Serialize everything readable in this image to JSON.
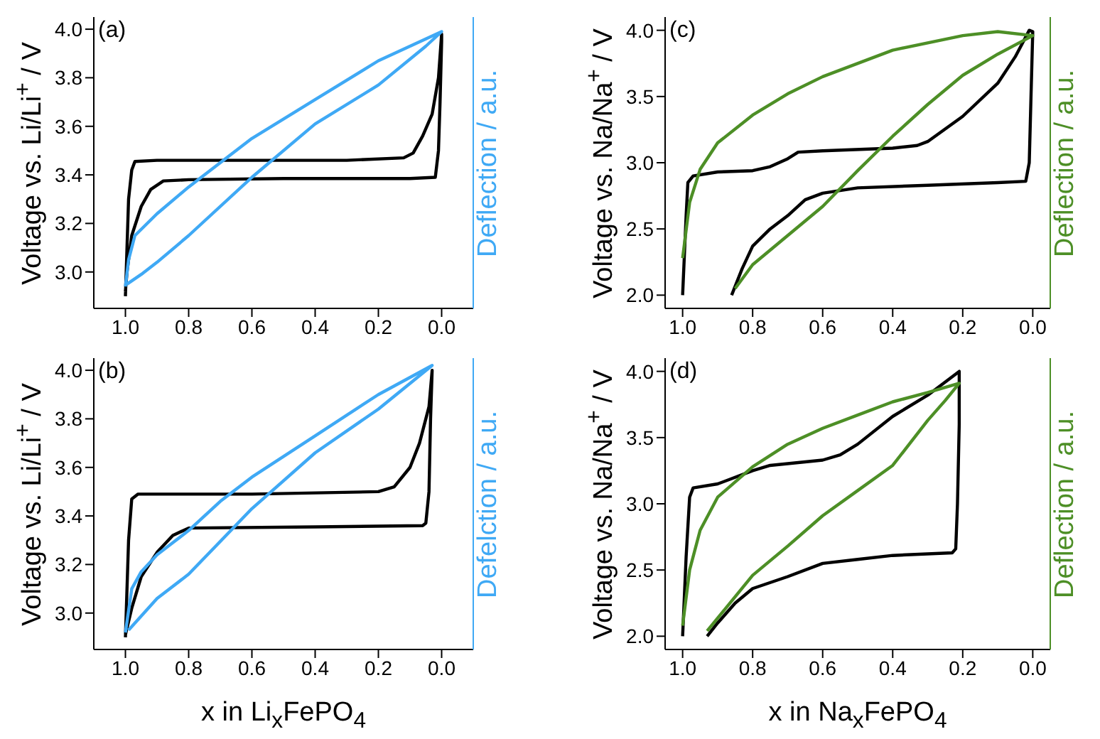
{
  "chart_data": [
    {
      "type": "line",
      "annotations": [
        "(a)"
      ],
      "ylabel": "Voltage vs. Li/Li$^{+}$ / V",
      "y2label": "Deflection / a.u.",
      "xlim": [
        1.1,
        -0.1
      ],
      "xticks": [
        {
          "value": 1,
          "label": "1.0"
        },
        {
          "value": 0.8,
          "label": "0.8"
        },
        {
          "value": 0.6,
          "label": "0.6"
        },
        {
          "value": 0.4,
          "label": "0.4"
        },
        {
          "value": 0.2,
          "label": "0.2"
        },
        {
          "value": 0,
          "label": "0.0"
        }
      ],
      "ylim": [
        2.85,
        4.05
      ],
      "yticks": [
        {
          "value": 3,
          "label": "3.0"
        },
        3.2,
        3.4,
        3.6,
        3.8,
        {
          "value": 4,
          "label": "4.0"
        }
      ],
      "series": [
        {
          "color": "#000000",
          "x": [
            1.0,
            0.995,
            0.99,
            0.98,
            0.97,
            0.9,
            0.6,
            0.3,
            0.12,
            0.09,
            0.06,
            0.03,
            0.01,
            0.0,
            0.0,
            0.005,
            0.01,
            0.02,
            0.1,
            0.5,
            0.8,
            0.88,
            0.92,
            0.95,
            0.98,
            0.995,
            1.0
          ],
          "values": [
            2.9,
            3.1,
            3.3,
            3.42,
            3.455,
            3.46,
            3.46,
            3.46,
            3.47,
            3.49,
            3.56,
            3.65,
            3.8,
            3.98,
            3.95,
            3.7,
            3.5,
            3.39,
            3.385,
            3.385,
            3.38,
            3.375,
            3.34,
            3.27,
            3.15,
            3.0,
            2.92
          ]
        },
        {
          "color": "#3fa9f5",
          "x": [
            1.0,
            0.99,
            0.97,
            0.9,
            0.8,
            0.6,
            0.4,
            0.2,
            0.05,
            0.0,
            0.05,
            0.2,
            0.4,
            0.6,
            0.8,
            0.9,
            0.95,
            0.995
          ],
          "values": [
            2.94,
            3.05,
            3.15,
            3.24,
            3.35,
            3.55,
            3.71,
            3.87,
            3.96,
            3.99,
            3.93,
            3.77,
            3.61,
            3.39,
            3.15,
            3.04,
            2.99,
            2.95
          ]
        }
      ]
    },
    {
      "type": "line",
      "annotations": [
        "(c)"
      ],
      "ylabel": "Voltage vs. Na/Na$^{+}$ / V",
      "y2label": "Deflection / a.u.",
      "xlim": [
        1.05,
        -0.05
      ],
      "xticks": [
        {
          "value": 1,
          "label": "1.0"
        },
        {
          "value": 0.8,
          "label": "0.8"
        },
        {
          "value": 0.6,
          "label": "0.6"
        },
        {
          "value": 0.4,
          "label": "0.4"
        },
        {
          "value": 0.2,
          "label": "0.2"
        },
        {
          "value": 0,
          "label": "0.0"
        }
      ],
      "ylim": [
        1.9,
        4.1
      ],
      "yticks": [
        {
          "value": 2,
          "label": "2.0"
        },
        2.5,
        {
          "value": 3,
          "label": "3.0"
        },
        3.5,
        {
          "value": 4,
          "label": "4.0"
        }
      ],
      "series": [
        {
          "color": "#000000",
          "x": [
            1.0,
            0.99,
            0.985,
            0.97,
            0.9,
            0.8,
            0.75,
            0.7,
            0.67,
            0.6,
            0.4,
            0.33,
            0.3,
            0.2,
            0.1,
            0.05,
            0.01,
            0.0,
            0.005,
            0.01,
            0.02,
            0.1,
            0.3,
            0.5,
            0.6,
            0.65,
            0.7,
            0.75,
            0.8,
            0.83,
            0.86
          ],
          "values": [
            2.0,
            2.6,
            2.85,
            2.9,
            2.93,
            2.94,
            2.97,
            3.03,
            3.08,
            3.09,
            3.11,
            3.13,
            3.16,
            3.35,
            3.6,
            3.8,
            4.0,
            3.99,
            3.5,
            3.0,
            2.86,
            2.85,
            2.83,
            2.81,
            2.77,
            2.72,
            2.6,
            2.5,
            2.37,
            2.2,
            2.0
          ]
        },
        {
          "color": "#4d8f26",
          "x": [
            1.0,
            0.98,
            0.95,
            0.9,
            0.8,
            0.7,
            0.6,
            0.4,
            0.2,
            0.1,
            0.0,
            0.1,
            0.2,
            0.3,
            0.4,
            0.5,
            0.6,
            0.7,
            0.8,
            0.85
          ],
          "values": [
            2.28,
            2.7,
            2.95,
            3.15,
            3.36,
            3.52,
            3.65,
            3.85,
            3.96,
            3.99,
            3.96,
            3.82,
            3.66,
            3.44,
            3.2,
            2.94,
            2.67,
            2.45,
            2.23,
            2.05
          ]
        }
      ]
    },
    {
      "type": "line",
      "annotations": [
        "(b)"
      ],
      "ylabel": "Voltage vs. Li/Li$^{+}$ / V",
      "y2label": "Defelction / a.u.",
      "xlabel": "x in Li$_{x}$FePO$_{4}$",
      "xlim": [
        1.1,
        -0.1
      ],
      "xticks": [
        {
          "value": 1,
          "label": "1.0"
        },
        {
          "value": 0.8,
          "label": "0.8"
        },
        {
          "value": 0.6,
          "label": "0.6"
        },
        {
          "value": 0.4,
          "label": "0.4"
        },
        {
          "value": 0.2,
          "label": "0.2"
        },
        {
          "value": 0,
          "label": "0.0"
        }
      ],
      "ylim": [
        2.85,
        4.05
      ],
      "yticks": [
        {
          "value": 3,
          "label": "3.0"
        },
        3.2,
        3.4,
        3.6,
        3.8,
        {
          "value": 4,
          "label": "4.0"
        }
      ],
      "series": [
        {
          "color": "#000000",
          "x": [
            1.0,
            0.99,
            0.98,
            0.96,
            0.6,
            0.2,
            0.15,
            0.1,
            0.07,
            0.04,
            0.03,
            0.035,
            0.04,
            0.05,
            0.06,
            0.4,
            0.8,
            0.85,
            0.9,
            0.95,
            0.98,
            1.0
          ],
          "values": [
            2.9,
            3.3,
            3.47,
            3.49,
            3.49,
            3.5,
            3.52,
            3.6,
            3.7,
            3.85,
            4.0,
            3.8,
            3.5,
            3.37,
            3.36,
            3.355,
            3.35,
            3.32,
            3.25,
            3.15,
            3.02,
            2.91
          ]
        },
        {
          "color": "#3fa9f5",
          "x": [
            1.0,
            0.98,
            0.95,
            0.9,
            0.8,
            0.7,
            0.6,
            0.4,
            0.2,
            0.03,
            0.2,
            0.4,
            0.6,
            0.8,
            0.9,
            0.99
          ],
          "values": [
            2.92,
            3.1,
            3.17,
            3.24,
            3.34,
            3.46,
            3.56,
            3.73,
            3.9,
            4.02,
            3.84,
            3.66,
            3.43,
            3.16,
            3.06,
            2.93
          ]
        }
      ]
    },
    {
      "type": "line",
      "annotations": [
        "(d)"
      ],
      "ylabel": "Voltage vs. Na/Na$^{+}$ / V",
      "y2label": "Deflection / a.u.",
      "xlabel": "x in Na$_{x}$FePO$_{4}$",
      "xlim": [
        1.05,
        -0.05
      ],
      "xticks": [
        {
          "value": 1,
          "label": "1.0"
        },
        {
          "value": 0.8,
          "label": "0.8"
        },
        {
          "value": 0.6,
          "label": "0.6"
        },
        {
          "value": 0.4,
          "label": "0.4"
        },
        {
          "value": 0.2,
          "label": "0.2"
        },
        {
          "value": 0,
          "label": "0.0"
        }
      ],
      "ylim": [
        1.9,
        4.1
      ],
      "yticks": [
        {
          "value": 2,
          "label": "2.0"
        },
        2.5,
        {
          "value": 3,
          "label": "3.0"
        },
        3.5,
        {
          "value": 4,
          "label": "4.0"
        }
      ],
      "series": [
        {
          "color": "#000000",
          "x": [
            1.0,
            0.99,
            0.98,
            0.97,
            0.9,
            0.8,
            0.75,
            0.6,
            0.55,
            0.5,
            0.4,
            0.3,
            0.21,
            0.21,
            0.215,
            0.22,
            0.23,
            0.4,
            0.5,
            0.6,
            0.7,
            0.8,
            0.85,
            0.9,
            0.93
          ],
          "values": [
            2.0,
            2.6,
            3.05,
            3.12,
            3.15,
            3.25,
            3.29,
            3.33,
            3.37,
            3.45,
            3.66,
            3.82,
            4.0,
            3.6,
            3.0,
            2.66,
            2.63,
            2.61,
            2.58,
            2.55,
            2.45,
            2.36,
            2.25,
            2.1,
            2.0
          ]
        },
        {
          "color": "#4d8f26",
          "x": [
            1.0,
            0.98,
            0.95,
            0.9,
            0.8,
            0.7,
            0.6,
            0.5,
            0.4,
            0.3,
            0.21,
            0.25,
            0.3,
            0.4,
            0.5,
            0.6,
            0.7,
            0.8,
            0.93
          ],
          "values": [
            2.08,
            2.5,
            2.8,
            3.05,
            3.28,
            3.45,
            3.57,
            3.67,
            3.77,
            3.84,
            3.91,
            3.78,
            3.63,
            3.29,
            3.1,
            2.91,
            2.68,
            2.46,
            2.04
          ]
        }
      ]
    }
  ]
}
